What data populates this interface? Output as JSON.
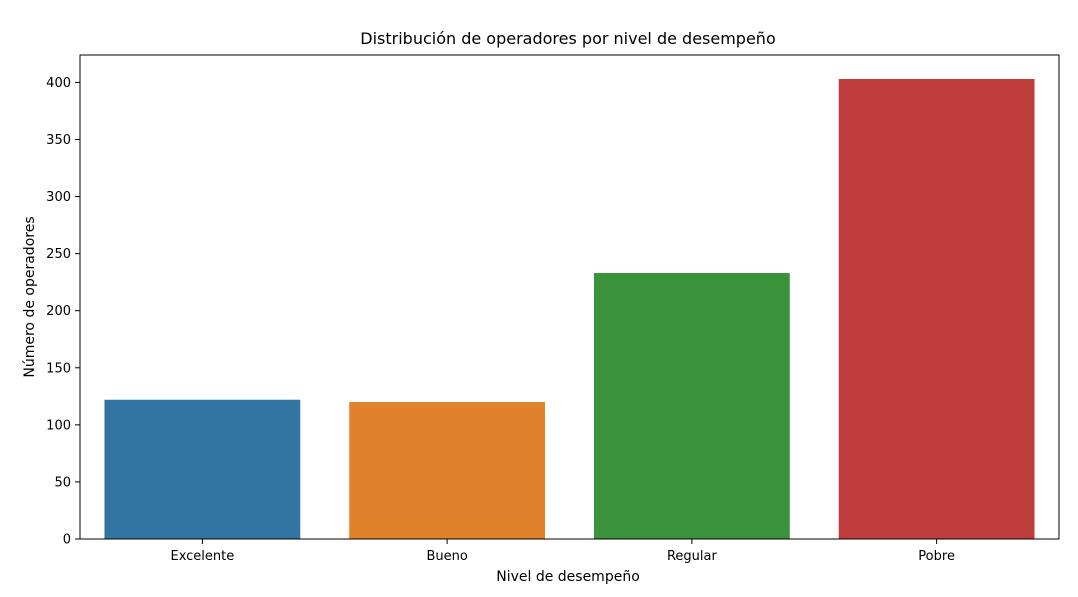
{
  "chart_data": {
    "type": "bar",
    "title": "Distribución de operadores por nivel de desempeño",
    "xlabel": "Nivel de desempeño",
    "ylabel": "Número de operadores",
    "categories": [
      "Excelente",
      "Bueno",
      "Regular",
      "Pobre"
    ],
    "values": [
      122,
      120,
      233,
      403
    ],
    "colors": [
      "#3274a1",
      "#e1812c",
      "#3a923a",
      "#c03d3e"
    ],
    "ylim": [
      0,
      424
    ],
    "yticks": [
      0,
      50,
      100,
      150,
      200,
      250,
      300,
      350,
      400
    ],
    "grid": false,
    "legend": "none"
  }
}
